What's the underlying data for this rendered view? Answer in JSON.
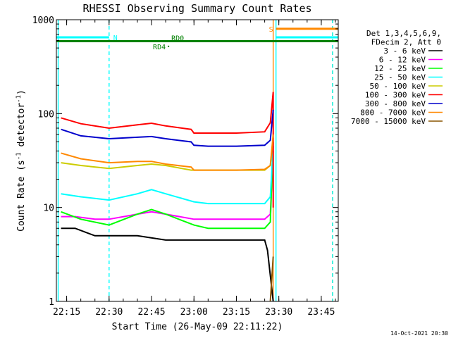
{
  "chart_data": {
    "type": "line",
    "title": "RHESSI Observing Summary Count Rates",
    "xlabel": "Start Time (26-May-09 22:11:22)",
    "ylabel_main": "Count Rate (s",
    "ylabel_sup1": "-1",
    "ylabel_mid": " detector",
    "ylabel_sup2": "-1",
    "ylabel_end": ")",
    "yscale": "log",
    "xlim": [
      "22:11:22",
      "23:51:00"
    ],
    "ylim": [
      1,
      1000
    ],
    "x_ticks": [
      "22:15",
      "22:30",
      "22:45",
      "23:00",
      "23:15",
      "23:30",
      "23:45"
    ],
    "y_ticks": [
      1,
      10,
      100,
      1000
    ],
    "y_tick_labels": [
      "1",
      "10",
      "100",
      "1000"
    ],
    "legend_header": [
      "Det 1,3,4,5,6,9,",
      "FDecim 2, Att 0"
    ],
    "legend_position": "right",
    "date_stamp": "14-Oct-2021 20:30",
    "series": [
      {
        "name": "3 - 6 keV",
        "color": "#000000",
        "x": [
          "22:13",
          "22:18",
          "22:25",
          "22:30",
          "22:40",
          "22:50",
          "23:00",
          "23:05",
          "23:15",
          "23:25",
          "23:26",
          "23:28"
        ],
        "values": [
          6,
          6,
          5,
          5,
          5,
          4.5,
          4.5,
          4.5,
          4.5,
          4.5,
          3.5,
          1
        ]
      },
      {
        "name": "6 - 12 keV",
        "color": "#ff00ff",
        "x": [
          "22:13",
          "22:18",
          "22:25",
          "22:30",
          "22:40",
          "22:45",
          "22:50",
          "23:00",
          "23:05",
          "23:15",
          "23:25",
          "23:27",
          "23:28"
        ],
        "values": [
          8,
          8,
          7.5,
          7.5,
          8.5,
          9,
          8.5,
          7.5,
          7.5,
          7.5,
          7.5,
          8.5,
          40
        ]
      },
      {
        "name": "12 - 25 keV",
        "color": "#00ff00",
        "x": [
          "22:13",
          "22:20",
          "22:30",
          "22:40",
          "22:45",
          "22:50",
          "23:00",
          "23:05",
          "23:15",
          "23:25",
          "23:27",
          "23:28"
        ],
        "values": [
          9,
          7.5,
          6.5,
          8.5,
          9.5,
          8.5,
          6.5,
          6,
          6,
          6,
          7,
          50
        ]
      },
      {
        "name": "25 - 50 keV",
        "color": "#00ffff",
        "x": [
          "22:13",
          "22:20",
          "22:30",
          "22:40",
          "22:45",
          "22:50",
          "23:00",
          "23:05",
          "23:15",
          "23:25",
          "23:27",
          "23:28"
        ],
        "values": [
          14,
          13,
          12,
          14,
          15.5,
          14,
          11.5,
          11,
          11,
          11,
          13,
          45
        ]
      },
      {
        "name": "50 - 100 keV",
        "color": "#cccc00",
        "x": [
          "22:13",
          "22:20",
          "22:30",
          "22:40",
          "22:45",
          "22:50",
          "22:59",
          "22:59",
          "23:05",
          "23:15",
          "23:25",
          "23:27",
          "23:28"
        ],
        "values": [
          30,
          28,
          26,
          28,
          29,
          28,
          25,
          25,
          25,
          25,
          25,
          28,
          55
        ]
      },
      {
        "name": "100 - 300 keV",
        "color": "#ff0000",
        "x": [
          "22:13",
          "22:20",
          "22:30",
          "22:40",
          "22:45",
          "22:50",
          "22:59",
          "23:00",
          "23:05",
          "23:15",
          "23:25",
          "23:27",
          "23:28",
          "23:28"
        ],
        "values": [
          90,
          78,
          70,
          76,
          79,
          74,
          68,
          62,
          62,
          62,
          64,
          80,
          170,
          10
        ]
      },
      {
        "name": "300 - 800 keV",
        "color": "#0000cc",
        "x": [
          "22:13",
          "22:20",
          "22:30",
          "22:40",
          "22:45",
          "22:50",
          "22:59",
          "23:00",
          "23:05",
          "23:15",
          "23:25",
          "23:27",
          "23:28"
        ],
        "values": [
          68,
          58,
          54,
          56,
          57,
          54,
          50,
          46,
          45,
          45,
          46,
          52,
          110
        ]
      },
      {
        "name": "800 - 7000 keV",
        "color": "#ff8800",
        "x": [
          "22:13",
          "22:20",
          "22:30",
          "22:40",
          "22:45",
          "22:50",
          "22:59",
          "23:00",
          "23:05",
          "23:15",
          "23:25",
          "23:27",
          "23:28"
        ],
        "values": [
          38,
          33,
          30,
          31,
          31,
          29,
          27,
          25,
          25,
          25,
          25.5,
          28,
          60
        ]
      },
      {
        "name": "7000 - 15000 keV",
        "color": "#885500",
        "x": [
          "23:27",
          "23:28"
        ],
        "values": [
          1,
          3
        ]
      }
    ],
    "annotations": [
      {
        "label": "N",
        "color": "#00ffff",
        "level": 650,
        "x_start": "22:11:22",
        "x_end": "22:30"
      },
      {
        "label": "S",
        "color": "#ff8800",
        "level": 800,
        "x_start": "23:29",
        "x_end": "23:51"
      },
      {
        "label": "",
        "color": "#00ffff",
        "level": 650,
        "x_start": "23:29",
        "x_end": "23:51"
      },
      {
        "label": "RD0",
        "color": "#008000",
        "level": 590,
        "x_start": "22:11:22",
        "x_end": "23:51"
      },
      {
        "label": "RD4",
        "color": "#008000",
        "level": 520,
        "x_start": "22:51",
        "x_end": "22:51"
      }
    ],
    "vertical_markers": [
      {
        "x": "22:12",
        "color": "#00ffff",
        "style": "solid"
      },
      {
        "x": "22:30",
        "color": "#00ffff",
        "style": "dashed"
      },
      {
        "x": "23:28",
        "color": "#ff8800",
        "style": "solid"
      },
      {
        "x": "23:29",
        "color": "#00ffff",
        "style": "solid"
      },
      {
        "x": "23:49",
        "color": "#ff8800",
        "style": "dashed"
      },
      {
        "x": "23:49",
        "color": "#00ffff",
        "style": "dashed"
      }
    ]
  }
}
